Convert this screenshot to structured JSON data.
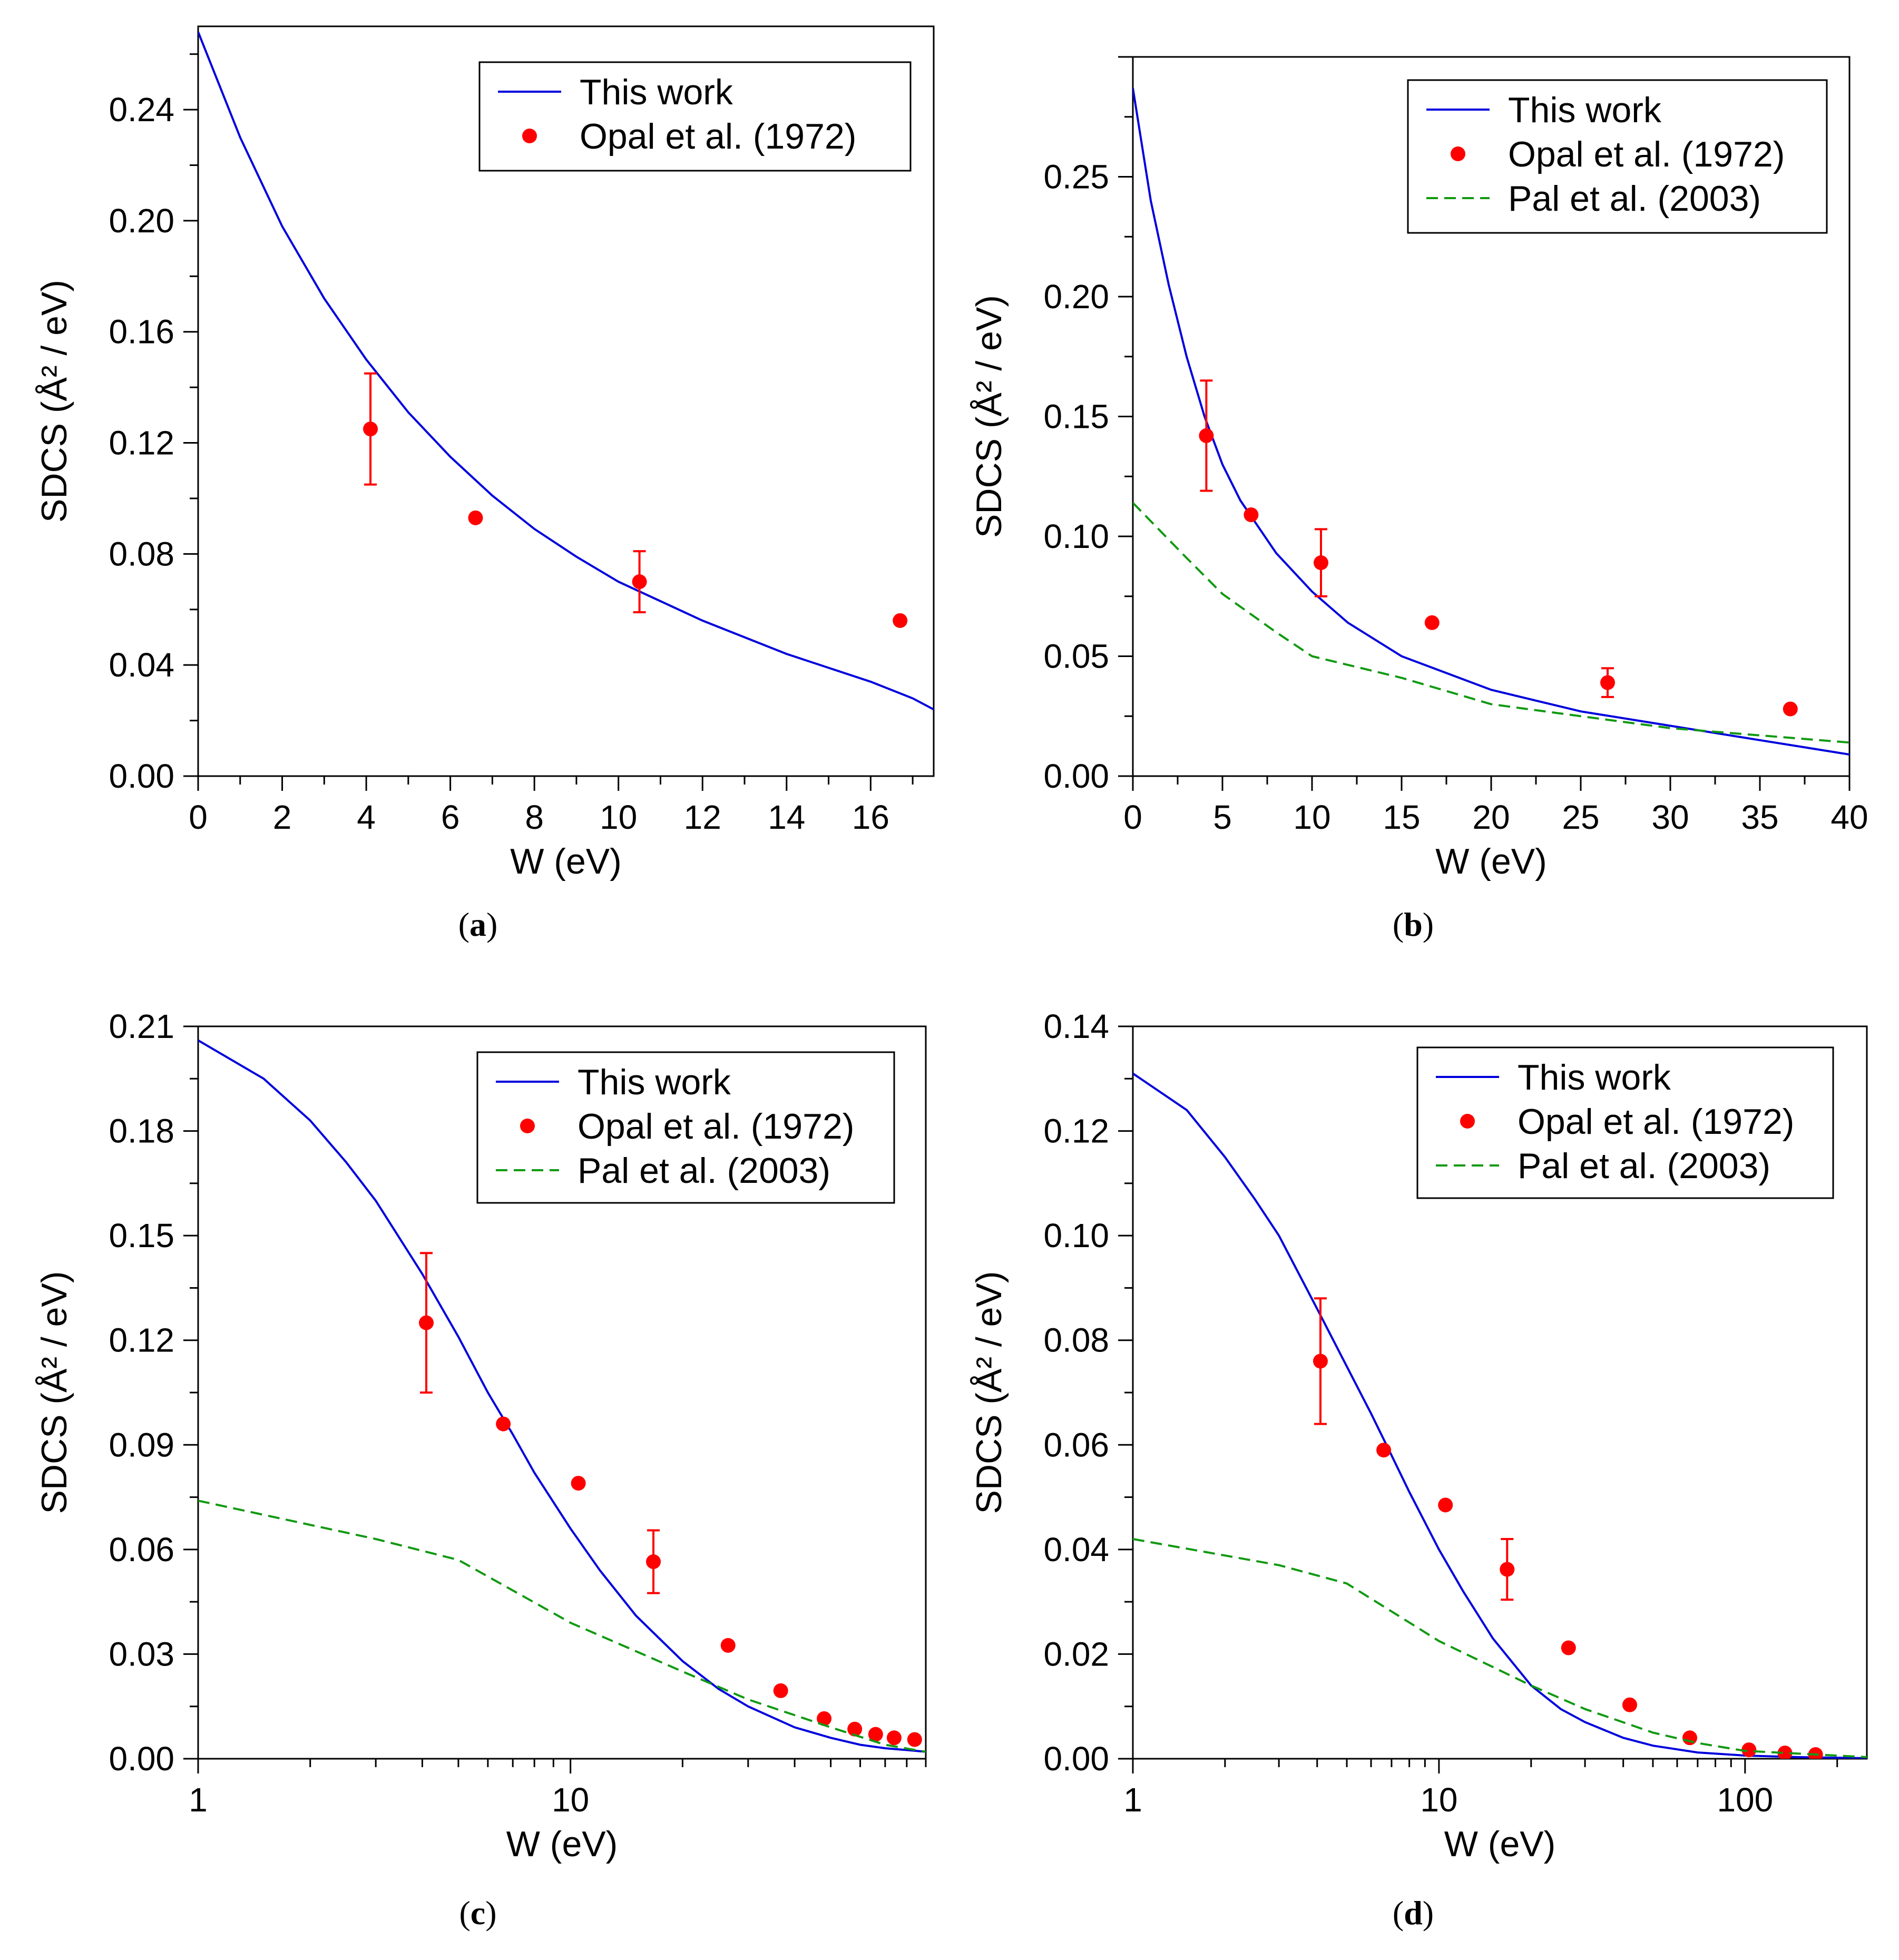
{
  "chart_data": [
    {
      "type": "line",
      "panel_label": "(a)",
      "xlabel": "W (eV)",
      "ylabel": "SDCS (Å² / eV)",
      "xscale": "linear",
      "xlim": [
        0,
        17.5
      ],
      "ylim": [
        0,
        0.27
      ],
      "xticks": [
        0,
        2,
        4,
        6,
        8,
        10,
        12,
        14,
        16
      ],
      "xtick_labels": [
        "0",
        "2",
        "4",
        "6",
        "8",
        "10",
        "12",
        "14",
        "16"
      ],
      "yticks": [
        0.0,
        0.04,
        0.08,
        0.12,
        0.16,
        0.2,
        0.24
      ],
      "ytick_labels": [
        "0.00",
        "0.04",
        "0.08",
        "0.12",
        "0.16",
        "0.20",
        "0.24"
      ],
      "legend_position": "top-right",
      "series": [
        {
          "name": "This work",
          "kind": "line",
          "color": "#0000dd",
          "style": "solid",
          "x": [
            0,
            1,
            2,
            3,
            4,
            5,
            6,
            7,
            8,
            9,
            10,
            11,
            12,
            13,
            14,
            15,
            16,
            17,
            17.5
          ],
          "y": [
            0.268,
            0.23,
            0.198,
            0.172,
            0.15,
            0.131,
            0.115,
            0.101,
            0.089,
            0.079,
            0.07,
            0.063,
            0.056,
            0.05,
            0.044,
            0.039,
            0.034,
            0.028,
            0.024
          ]
        },
        {
          "name": "Opal et al. (1972)",
          "kind": "points",
          "color": "#ff0000",
          "x": [
            4.1,
            6.6,
            10.5,
            16.7
          ],
          "y": [
            0.125,
            0.093,
            0.07,
            0.056
          ],
          "err": [
            0.02,
            null,
            0.011,
            null
          ]
        }
      ]
    },
    {
      "type": "line",
      "panel_label": "(b)",
      "xlabel": "W (eV)",
      "ylabel": "SDCS (Å² / eV)",
      "xscale": "linear",
      "xlim": [
        0,
        40
      ],
      "ylim": [
        0,
        0.3
      ],
      "xticks": [
        0,
        5,
        10,
        15,
        20,
        25,
        30,
        35,
        40
      ],
      "xtick_labels": [
        "0",
        "5",
        "10",
        "15",
        "20",
        "25",
        "30",
        "35",
        "40"
      ],
      "yticks": [
        0.0,
        0.05,
        0.1,
        0.15,
        0.2,
        0.25
      ],
      "ytick_labels": [
        "0.00",
        "0.05",
        "0.10",
        "0.15",
        "0.20",
        "0.25"
      ],
      "legend_position": "top-right",
      "series": [
        {
          "name": "This work",
          "kind": "line",
          "color": "#0000dd",
          "style": "solid",
          "x": [
            0,
            1,
            2,
            3,
            4,
            5,
            6,
            8,
            10,
            12,
            15,
            20,
            25,
            30,
            35,
            40
          ],
          "y": [
            0.287,
            0.24,
            0.205,
            0.175,
            0.15,
            0.13,
            0.115,
            0.093,
            0.077,
            0.064,
            0.05,
            0.036,
            0.027,
            0.021,
            0.015,
            0.009
          ]
        },
        {
          "name": "Opal et al. (1972)",
          "kind": "points",
          "color": "#ff0000",
          "x": [
            4.1,
            6.6,
            10.5,
            16.7,
            26.5,
            36.7
          ],
          "y": [
            0.142,
            0.109,
            0.089,
            0.064,
            0.039,
            0.028
          ],
          "err": [
            0.023,
            null,
            0.014,
            null,
            0.006,
            null
          ]
        },
        {
          "name": "Pal et al. (2003)",
          "kind": "line",
          "color": "#119911",
          "style": "dashed",
          "x": [
            0,
            3,
            5,
            8,
            10,
            15,
            20,
            25,
            30,
            35,
            40
          ],
          "y": [
            0.114,
            0.091,
            0.076,
            0.06,
            0.05,
            0.041,
            0.03,
            0.025,
            0.02,
            0.017,
            0.014
          ]
        }
      ]
    },
    {
      "type": "line",
      "panel_label": "(c)",
      "xlabel": "W (eV)",
      "ylabel": "SDCS (Å² / eV)",
      "xscale": "log",
      "xlim": [
        1,
        90
      ],
      "ylim": [
        0,
        0.21
      ],
      "xticks": [
        1,
        10
      ],
      "xtick_labels": [
        "1",
        "10"
      ],
      "yticks": [
        0.0,
        0.03,
        0.06,
        0.09,
        0.12,
        0.15,
        0.18,
        0.21
      ],
      "ytick_labels": [
        "0.00",
        "0.03",
        "0.06",
        "0.09",
        "0.12",
        "0.15",
        "0.18",
        "0.21"
      ],
      "legend_position": "top-right",
      "series": [
        {
          "name": "This work",
          "kind": "line",
          "color": "#0000dd",
          "style": "solid",
          "x": [
            1,
            1.5,
            2,
            2.5,
            3,
            4,
            5,
            6,
            7,
            8,
            10,
            12,
            15,
            20,
            25,
            30,
            40,
            50,
            60,
            70,
            80,
            90
          ],
          "y": [
            0.206,
            0.195,
            0.183,
            0.171,
            0.16,
            0.139,
            0.121,
            0.105,
            0.093,
            0.082,
            0.066,
            0.054,
            0.041,
            0.028,
            0.02,
            0.015,
            0.009,
            0.006,
            0.004,
            0.003,
            0.0025,
            0.002
          ]
        },
        {
          "name": "Opal et al. (1972)",
          "kind": "points",
          "color": "#ff0000",
          "x": [
            4.1,
            6.6,
            10.5,
            16.7,
            26.5,
            36.7,
            48,
            58,
            66,
            74,
            84
          ],
          "y": [
            0.125,
            0.096,
            0.079,
            0.0565,
            0.0325,
            0.0195,
            0.0115,
            0.0085,
            0.007,
            0.006,
            0.0055
          ],
          "err": [
            0.02,
            null,
            null,
            0.009,
            null,
            null,
            null,
            null,
            null,
            null,
            null
          ]
        },
        {
          "name": "Pal et al. (2003)",
          "kind": "line",
          "color": "#119911",
          "style": "dashed",
          "x": [
            1,
            3,
            5,
            10,
            20,
            30,
            50,
            70,
            90
          ],
          "y": [
            0.074,
            0.063,
            0.057,
            0.039,
            0.025,
            0.017,
            0.009,
            0.004,
            0.002
          ]
        }
      ]
    },
    {
      "type": "line",
      "panel_label": "(d)",
      "xlabel": "W (eV)",
      "ylabel": "SDCS (Å² / eV)",
      "xscale": "log",
      "xlim": [
        1,
        250
      ],
      "ylim": [
        0,
        0.14
      ],
      "xticks": [
        1,
        10,
        100
      ],
      "xtick_labels": [
        "1",
        "10",
        "100"
      ],
      "yticks": [
        0.0,
        0.02,
        0.04,
        0.06,
        0.08,
        0.1,
        0.12,
        0.14
      ],
      "ytick_labels": [
        "0.00",
        "0.02",
        "0.04",
        "0.06",
        "0.08",
        "0.10",
        "0.12",
        "0.14"
      ],
      "legend_position": "top-right",
      "series": [
        {
          "name": "This work",
          "kind": "line",
          "color": "#0000dd",
          "style": "solid",
          "x": [
            1,
            1.5,
            2,
            2.5,
            3,
            4,
            5,
            6,
            7,
            8,
            10,
            12,
            15,
            20,
            25,
            30,
            40,
            50,
            70,
            100,
            150,
            250
          ],
          "y": [
            0.131,
            0.124,
            0.115,
            0.107,
            0.1,
            0.086,
            0.075,
            0.066,
            0.058,
            0.051,
            0.04,
            0.032,
            0.023,
            0.014,
            0.0095,
            0.007,
            0.004,
            0.0025,
            0.0012,
            0.0006,
            0.0003,
            0.0001
          ]
        },
        {
          "name": "Opal et al. (1972)",
          "kind": "points",
          "color": "#ff0000",
          "x": [
            4.1,
            6.6,
            10.5,
            16.7,
            26.5,
            42,
            66,
            103,
            135,
            170
          ],
          "y": [
            0.076,
            0.059,
            0.0485,
            0.0362,
            0.0212,
            0.0103,
            0.004,
            0.0017,
            0.0011,
            0.0008
          ],
          "err": [
            0.012,
            null,
            null,
            0.0058,
            null,
            null,
            null,
            null,
            null,
            null
          ]
        },
        {
          "name": "Pal et al. (2003)",
          "kind": "line",
          "color": "#119911",
          "style": "dashed",
          "x": [
            1,
            3,
            5,
            10,
            20,
            30,
            50,
            70,
            100,
            250
          ],
          "y": [
            0.042,
            0.037,
            0.0335,
            0.0225,
            0.014,
            0.0095,
            0.005,
            0.003,
            0.0015,
            0.0003
          ]
        }
      ]
    }
  ]
}
